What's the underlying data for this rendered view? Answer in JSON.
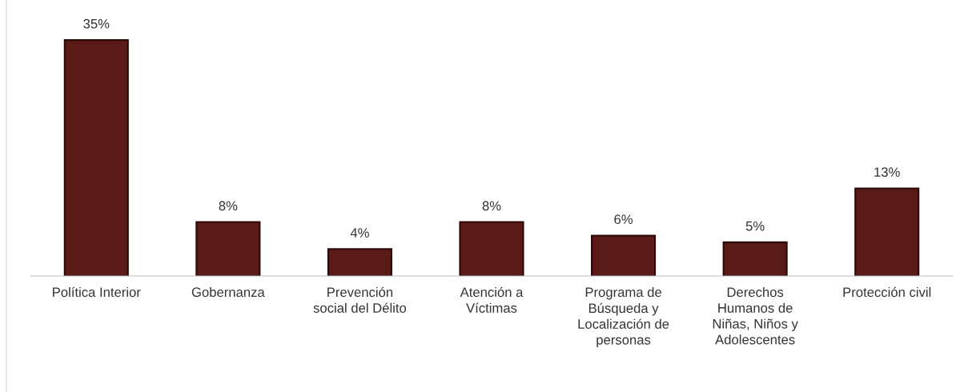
{
  "chart_data": {
    "type": "bar",
    "categories": [
      "Política Interior",
      "Gobernanza",
      "Prevención\nsocial del Délito",
      "Atención a\nVíctimas",
      "Programa de\nBúsqueda y\nLocalización de\npersonas",
      "Derechos\nHumanos de\nNiñas, Niños y\nAdolescentes",
      "Protección civil"
    ],
    "values": [
      35,
      8,
      4,
      8,
      6,
      5,
      13
    ],
    "value_labels": [
      "35%",
      "8%",
      "4%",
      "8%",
      "6%",
      "5%",
      "13%"
    ],
    "color": "#5a1a16",
    "grid": false,
    "legend": false
  }
}
